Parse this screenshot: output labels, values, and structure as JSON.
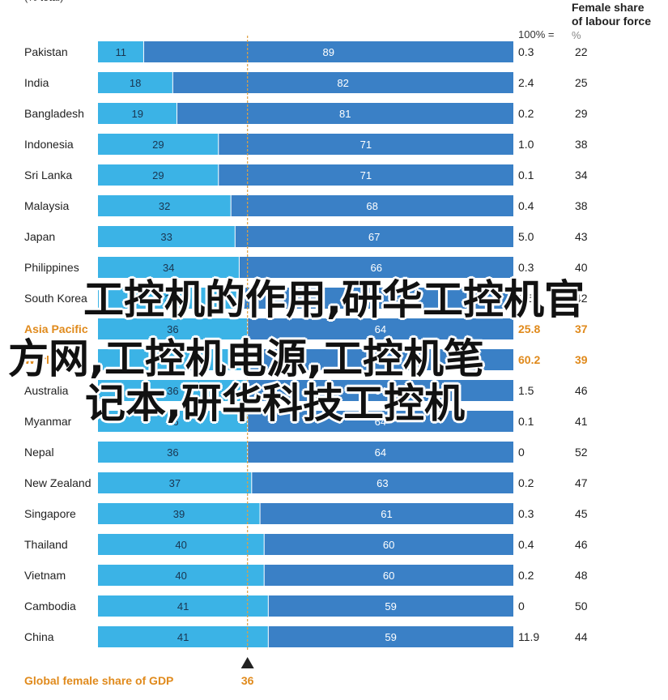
{
  "chart_data": {
    "type": "bar",
    "orientation": "horizontal",
    "stacked": true,
    "total": 100,
    "reference_value": 36,
    "reference_label": "36",
    "reference_caption": "Global female share of GDP",
    "header_top_line": "(% total)",
    "header_100": "100% =",
    "right_header_title_1": "Female share",
    "right_header_title_2": "of labour force",
    "right_header_unit": "%",
    "rows": [
      {
        "country": "Pakistan",
        "female": 11,
        "male": 89,
        "gdp": "0.3",
        "labour": "22"
      },
      {
        "country": "India",
        "female": 18,
        "male": 82,
        "gdp": "2.4",
        "labour": "25"
      },
      {
        "country": "Bangladesh",
        "female": 19,
        "male": 81,
        "gdp": "0.2",
        "labour": "29"
      },
      {
        "country": "Indonesia",
        "female": 29,
        "male": 71,
        "gdp": "1.0",
        "labour": "38"
      },
      {
        "country": "Sri Lanka",
        "female": 29,
        "male": 71,
        "gdp": "0.1",
        "labour": "34"
      },
      {
        "country": "Malaysia",
        "female": 32,
        "male": 68,
        "gdp": "0.4",
        "labour": "38"
      },
      {
        "country": "Japan",
        "female": 33,
        "male": 67,
        "gdp": "5.0",
        "labour": "43"
      },
      {
        "country": "Philippines",
        "female": 34,
        "male": 66,
        "gdp": "0.3",
        "labour": "40"
      },
      {
        "country": "South Korea",
        "female": 35,
        "male": 65,
        "gdp": "1.5",
        "labour": "42"
      },
      {
        "country": "Asia Pacific",
        "female": 36,
        "male": 64,
        "gdp": "25.8",
        "labour": "37",
        "highlight": true
      },
      {
        "country": "World",
        "female": 36,
        "male": 64,
        "gdp": "60.2",
        "labour": "39",
        "highlight": true
      },
      {
        "country": "Australia",
        "female": 36,
        "male": 64,
        "gdp": "1.5",
        "labour": "46"
      },
      {
        "country": "Myanmar",
        "female": 36,
        "male": 64,
        "gdp": "0.1",
        "labour": "41"
      },
      {
        "country": "Nepal",
        "female": 36,
        "male": 64,
        "gdp": "0",
        "labour": "52"
      },
      {
        "country": "New Zealand",
        "female": 37,
        "male": 63,
        "gdp": "0.2",
        "labour": "47"
      },
      {
        "country": "Singapore",
        "female": 39,
        "male": 61,
        "gdp": "0.3",
        "labour": "45"
      },
      {
        "country": "Thailand",
        "female": 40,
        "male": 60,
        "gdp": "0.4",
        "labour": "46"
      },
      {
        "country": "Vietnam",
        "female": 40,
        "male": 60,
        "gdp": "0.2",
        "labour": "48"
      },
      {
        "country": "Cambodia",
        "female": 41,
        "male": 59,
        "gdp": "0",
        "labour": "50"
      },
      {
        "country": "China",
        "female": 41,
        "male": 59,
        "gdp": "11.9",
        "labour": "44"
      }
    ],
    "colors": {
      "female": "#3bb3e6",
      "male": "#3a80c6",
      "highlight_text": "#e08a1c",
      "reference_line": "#e0a040"
    }
  },
  "overlay": {
    "line1": "工控机的作用,研华工控机官",
    "line2": "方网,工控机电源,工控机笔",
    "line3": "记本,研华科技工控机"
  }
}
